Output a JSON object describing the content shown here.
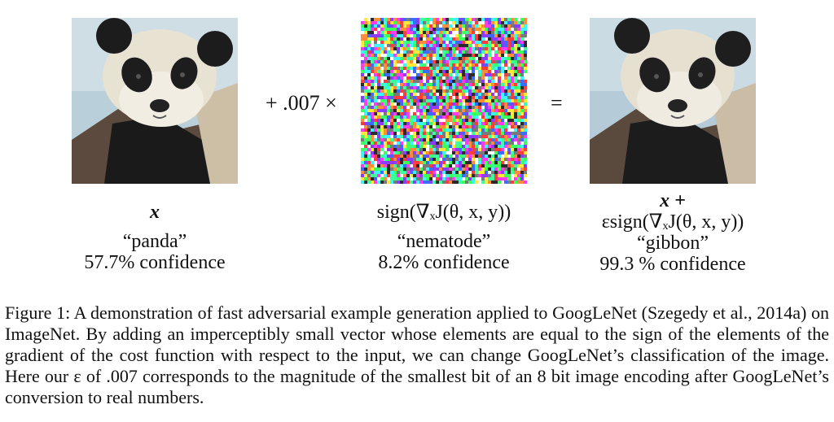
{
  "figure": {
    "operator_multiply": "+ .007 ×",
    "operator_equals": "=",
    "left": {
      "symbol": "x",
      "label": "“panda”",
      "confidence": "57.7% confidence"
    },
    "middle": {
      "formula": "sign(∇ₓJ(θ, x, y))",
      "label": "“nematode”",
      "confidence": "8.2% confidence"
    },
    "right": {
      "formula_line1": "x +",
      "formula_line2": "εsign(∇ₓJ(θ, x, y))",
      "label": "“gibbon”",
      "confidence": "99.3 % confidence"
    }
  },
  "caption": {
    "text": "Figure 1: A demonstration of fast adversarial example generation applied to GoogLeNet (Szegedy et al., 2014a) on ImageNet. By adding an imperceptibly small vector whose elements are equal to the sign of the elements of the gradient of the cost function with respect to the input, we can change GoogLeNet’s classification of the image. Here our ε of .007 corresponds to the magnitude of the smallest bit of an 8 bit image encoding after GoogLeNet’s conversion to real numbers."
  }
}
